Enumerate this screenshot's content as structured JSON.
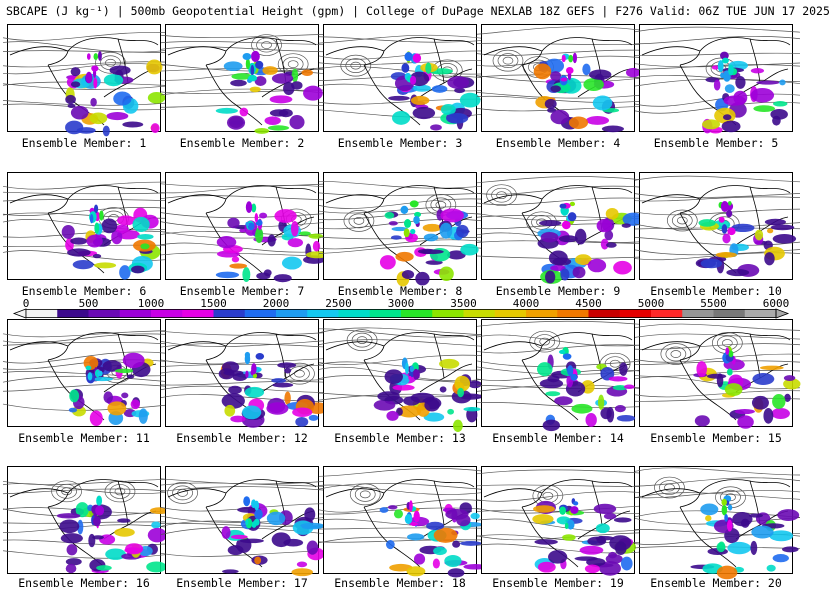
{
  "header": {
    "title": "SBCAPE (J kg⁻¹) | 500mb Geopotential Height (gpm) | College of DuPage NEXLAB 18Z GEFS | F276 Valid: 06Z TUE JUN 17 2025"
  },
  "panels": [
    {
      "label": "Ensemble Member: 1"
    },
    {
      "label": "Ensemble Member: 2"
    },
    {
      "label": "Ensemble Member: 3"
    },
    {
      "label": "Ensemble Member: 4"
    },
    {
      "label": "Ensemble Member: 5"
    },
    {
      "label": "Ensemble Member: 6"
    },
    {
      "label": "Ensemble Member: 7"
    },
    {
      "label": "Ensemble Member: 8"
    },
    {
      "label": "Ensemble Member: 9"
    },
    {
      "label": "Ensemble Member: 10"
    },
    {
      "label": "Ensemble Member: 11"
    },
    {
      "label": "Ensemble Member: 12"
    },
    {
      "label": "Ensemble Member: 13"
    },
    {
      "label": "Ensemble Member: 14"
    },
    {
      "label": "Ensemble Member: 15"
    },
    {
      "label": "Ensemble Member: 16"
    },
    {
      "label": "Ensemble Member: 17"
    },
    {
      "label": "Ensemble Member: 18"
    },
    {
      "label": "Ensemble Member: 19"
    },
    {
      "label": "Ensemble Member: 20"
    }
  ],
  "colorbar": {
    "ticks": [
      "0",
      "500",
      "1000",
      "1500",
      "2000",
      "2500",
      "3000",
      "3500",
      "4000",
      "4500",
      "5000",
      "5500",
      "6000"
    ],
    "min": 0,
    "max": 6000,
    "step": 250,
    "colors": [
      "#f2f2f2",
      "#3c0a8c",
      "#6a0ab4",
      "#9c00d8",
      "#c800e6",
      "#e600e6",
      "#2a3ccc",
      "#1f6cf0",
      "#1e9cf0",
      "#14c8f0",
      "#00dcc8",
      "#00e68c",
      "#28e628",
      "#8ce600",
      "#c8dc00",
      "#e6c800",
      "#f0a000",
      "#f07800",
      "#c80000",
      "#e60000",
      "#ff2828",
      "#969696",
      "#787878",
      "#aaaaaa"
    ]
  }
}
